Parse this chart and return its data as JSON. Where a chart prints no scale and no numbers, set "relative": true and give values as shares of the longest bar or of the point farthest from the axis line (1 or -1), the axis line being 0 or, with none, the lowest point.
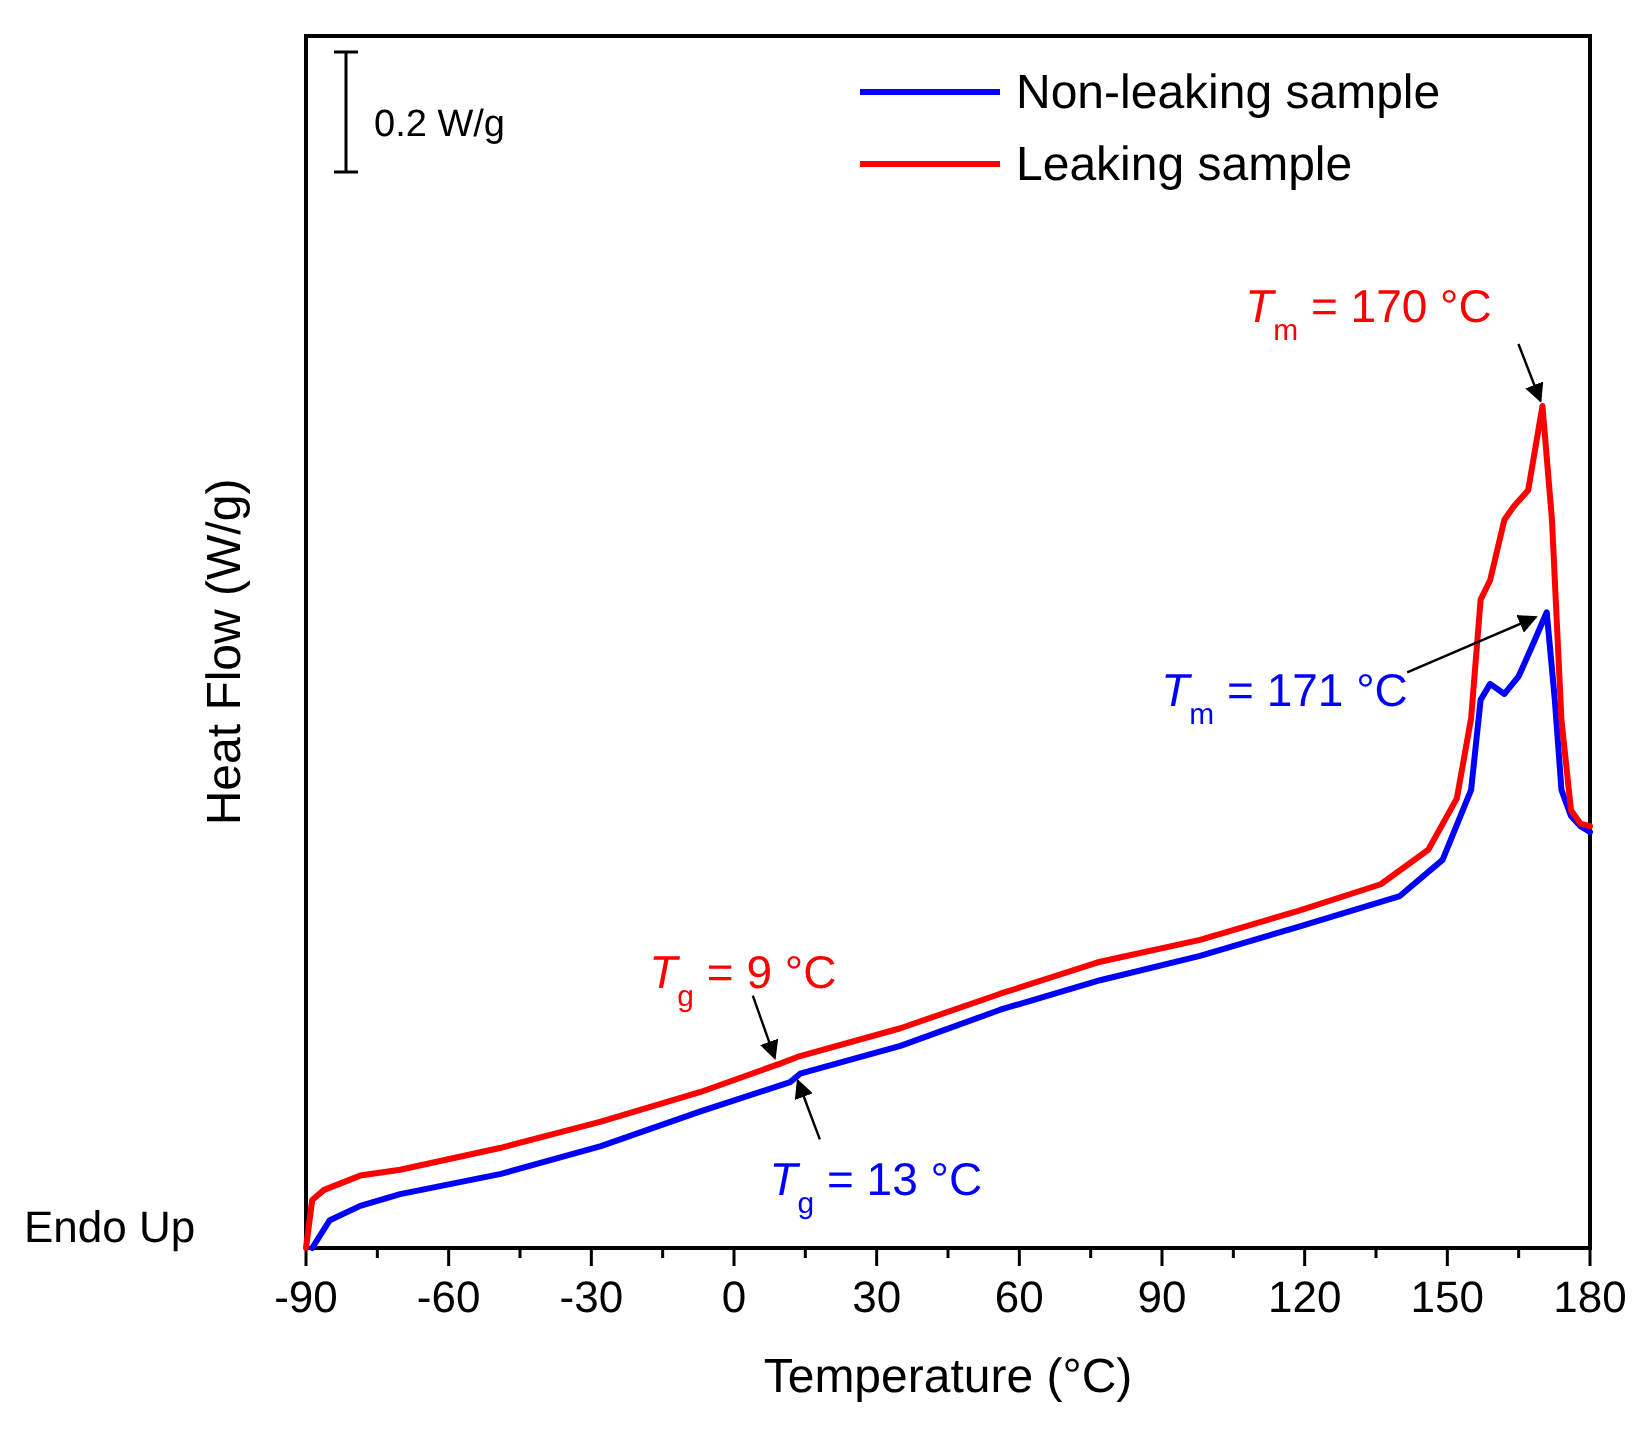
{
  "chart_data": {
    "type": "line",
    "relative": true,
    "xlabel": "Temperature (°C)",
    "ylabel": "Heat Flow (W/g)",
    "legend": "top right",
    "marker": "none",
    "line_style": "solid",
    "grid": false,
    "xlim": [
      -90,
      180
    ],
    "xticks": [
      -90,
      {
        "value": -75,
        "label": null
      },
      -60,
      {
        "value": -45,
        "label": null
      },
      -30,
      {
        "value": -15,
        "label": null
      },
      0,
      {
        "value": 15,
        "label": null
      },
      30,
      {
        "value": 45,
        "label": null
      },
      60,
      {
        "value": 75,
        "label": null
      },
      90,
      {
        "value": 105,
        "label": null
      },
      120,
      {
        "value": 135,
        "label": null
      },
      150,
      {
        "value": 165,
        "label": null
      },
      180
    ],
    "series": [
      {
        "name": "Non-leaking sample",
        "color": "#0000ff",
        "x": [
          -88.7,
          -85,
          -78.6,
          -70.2,
          -49,
          -28,
          -7.2,
          11.8,
          13.9,
          35,
          56,
          77,
          98,
          119,
          140,
          149,
          155,
          157,
          159,
          162,
          165,
          168,
          170.9,
          172.6,
          174,
          176,
          178,
          180
        ],
        "values": [
          0,
          0.033,
          0.05,
          0.064,
          0.088,
          0.121,
          0.162,
          0.197,
          0.207,
          0.24,
          0.283,
          0.318,
          0.347,
          0.382,
          0.418,
          0.461,
          0.544,
          0.651,
          0.67,
          0.658,
          0.679,
          0.717,
          0.755,
          0.651,
          0.544,
          0.513,
          0.501,
          0.494
        ]
      },
      {
        "name": "Leaking sample",
        "color": "#ff0000",
        "x": [
          -90,
          -88.7,
          -86.2,
          -78.6,
          -70.2,
          -49,
          -28,
          -7.2,
          9.7,
          13.9,
          35,
          56,
          77,
          98,
          119,
          136,
          146,
          152,
          155,
          157,
          159,
          162,
          164,
          167,
          170,
          172,
          174,
          176,
          178,
          180
        ],
        "values": [
          0,
          0.057,
          0.069,
          0.086,
          0.093,
          0.119,
          0.15,
          0.185,
          0.219,
          0.228,
          0.261,
          0.302,
          0.34,
          0.366,
          0.401,
          0.432,
          0.473,
          0.534,
          0.629,
          0.77,
          0.793,
          0.865,
          0.881,
          0.9,
          1.0,
          0.865,
          0.627,
          0.52,
          0.504,
          0.501
        ]
      }
    ],
    "annotations": [
      "0.2 W/g",
      "Endo Up",
      {
        "text": "T$_{m}$ = 170 °C",
        "x": 170,
        "y": 1.0
      },
      {
        "text": "T$_{m}$ = 171 °C",
        "x": 171,
        "y": 0.755
      },
      {
        "text": "T$_{g}$ = 9 °C",
        "x": 9,
        "y": 0.219
      },
      {
        "text": "T$_{g}$ = 13 °C",
        "x": 13,
        "y": 0.205
      }
    ]
  }
}
